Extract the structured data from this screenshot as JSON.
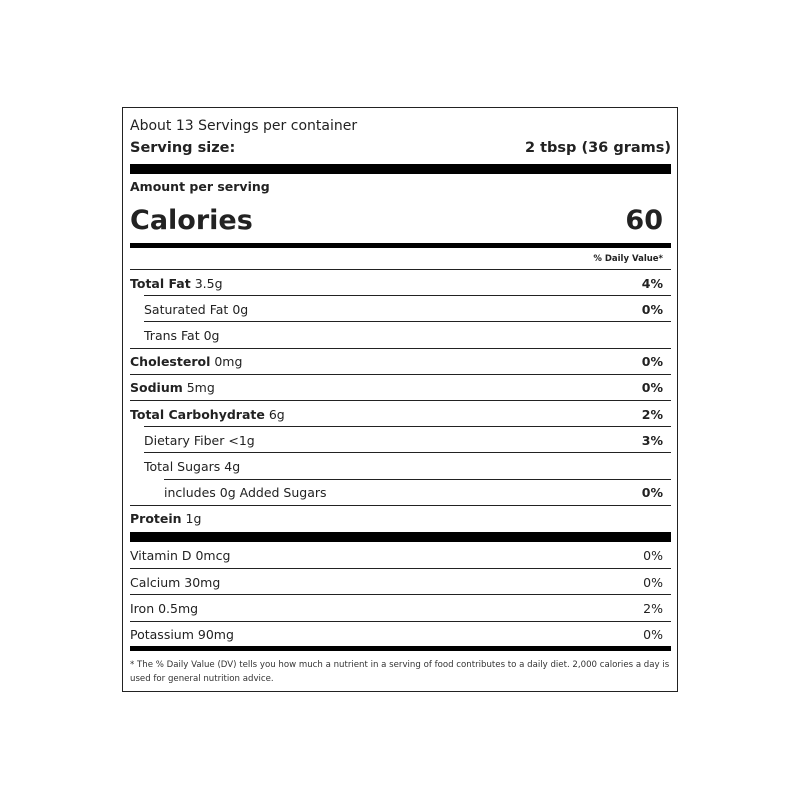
{
  "servings_per_container": "About 13 Servings per container",
  "serving_size_label": "Serving size:",
  "serving_size_value": "2 tbsp (36 grams)",
  "amount_per_serving": "Amount per serving",
  "calories_label": "Calories",
  "calories_value": "60",
  "daily_value_header": "% Daily Value*",
  "nutrients": [
    {
      "name": "Total Fat",
      "amount": "3.5g",
      "dv": "4%"
    },
    {
      "name": "Saturated Fat",
      "amount": "0g",
      "dv": "0%"
    },
    {
      "name": "Trans Fat",
      "amount": "0g",
      "dv": ""
    },
    {
      "name": "Cholesterol",
      "amount": "0mg",
      "dv": "0%"
    },
    {
      "name": "Sodium",
      "amount": "5mg",
      "dv": "0%"
    },
    {
      "name": "Total Carbohydrate",
      "amount": "6g",
      "dv": "2%"
    },
    {
      "name": "Dietary Fiber",
      "amount": "<1g",
      "dv": "3%"
    },
    {
      "name": "Total Sugars",
      "amount": "4g",
      "dv": ""
    },
    {
      "name": "includes 0g Added Sugars",
      "amount": "",
      "dv": "0%"
    },
    {
      "name": "Protein",
      "amount": "1g",
      "dv": ""
    }
  ],
  "vitamins": [
    {
      "label": "Vitamin D 0mcg",
      "dv": "0%"
    },
    {
      "label": "Calcium 30mg",
      "dv": "0%"
    },
    {
      "label": "Iron 0.5mg",
      "dv": "2%"
    },
    {
      "label": "Potassium 90mg",
      "dv": "0%"
    }
  ],
  "footnote": "* The % Daily Value (DV) tells you how much a nutrient in a serving of food contributes to a daily diet. 2,000 calories a day is used for general nutrition advice."
}
